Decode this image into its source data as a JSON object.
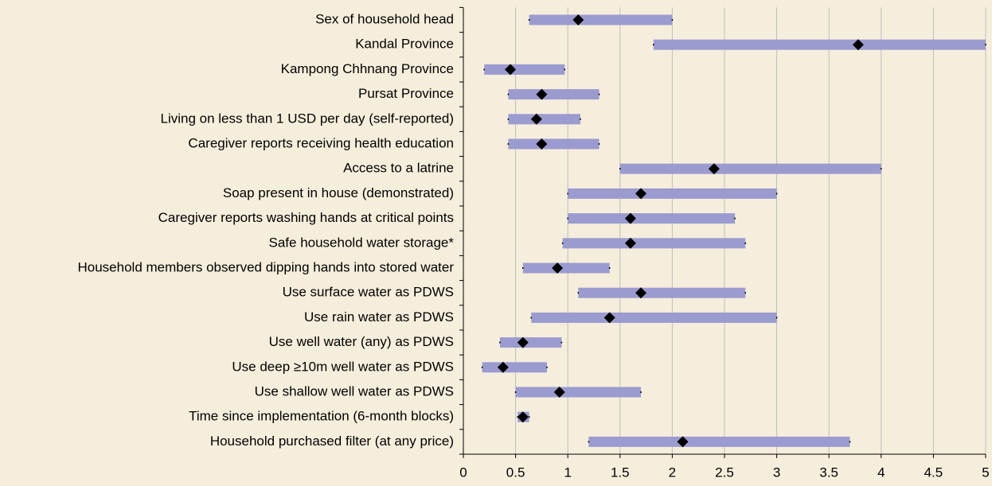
{
  "chart_data": {
    "type": "forest",
    "categories": [
      "Sex of household head",
      "Kandal Province",
      "Kampong Chhnang Province",
      "Pursat Province",
      "Living on less than 1 USD per day (self-reported)",
      "Caregiver reports receiving health education",
      "Access to a latrine",
      "Soap present in house (demonstrated)",
      "Caregiver reports washing hands at critical points",
      "Safe household water storage*",
      "Household members observed dipping hands into stored water",
      "Use surface water as PDWS",
      "Use rain water as PDWS",
      "Use well water (any) as PDWS",
      "Use deep ≥10m well water as PDWS",
      "Use shallow well water as PDWS",
      "Time since implementation (6-month blocks)",
      "Household purchased filter (at any price)"
    ],
    "values": [
      1.1,
      3.78,
      0.45,
      0.75,
      0.7,
      0.75,
      2.4,
      1.7,
      1.6,
      1.6,
      0.9,
      1.7,
      1.4,
      0.57,
      0.38,
      0.92,
      0.57,
      2.1
    ],
    "lower": [
      0.63,
      1.82,
      0.2,
      0.43,
      0.43,
      0.43,
      1.5,
      1.0,
      1.0,
      0.95,
      0.57,
      1.1,
      0.65,
      0.35,
      0.18,
      0.5,
      0.52,
      1.2
    ],
    "upper": [
      2.0,
      5.0,
      0.97,
      1.3,
      1.12,
      1.3,
      4.0,
      3.0,
      2.6,
      2.7,
      1.4,
      2.7,
      3.0,
      0.94,
      0.8,
      1.7,
      0.63,
      3.7
    ],
    "bar_color": "#9b9bd0",
    "marker_color": "#000000",
    "xlim": [
      0,
      5
    ],
    "xticks": [
      0,
      0.5,
      1,
      1.5,
      2,
      2.5,
      3,
      3.5,
      4,
      4.5,
      5
    ],
    "grid": true
  }
}
